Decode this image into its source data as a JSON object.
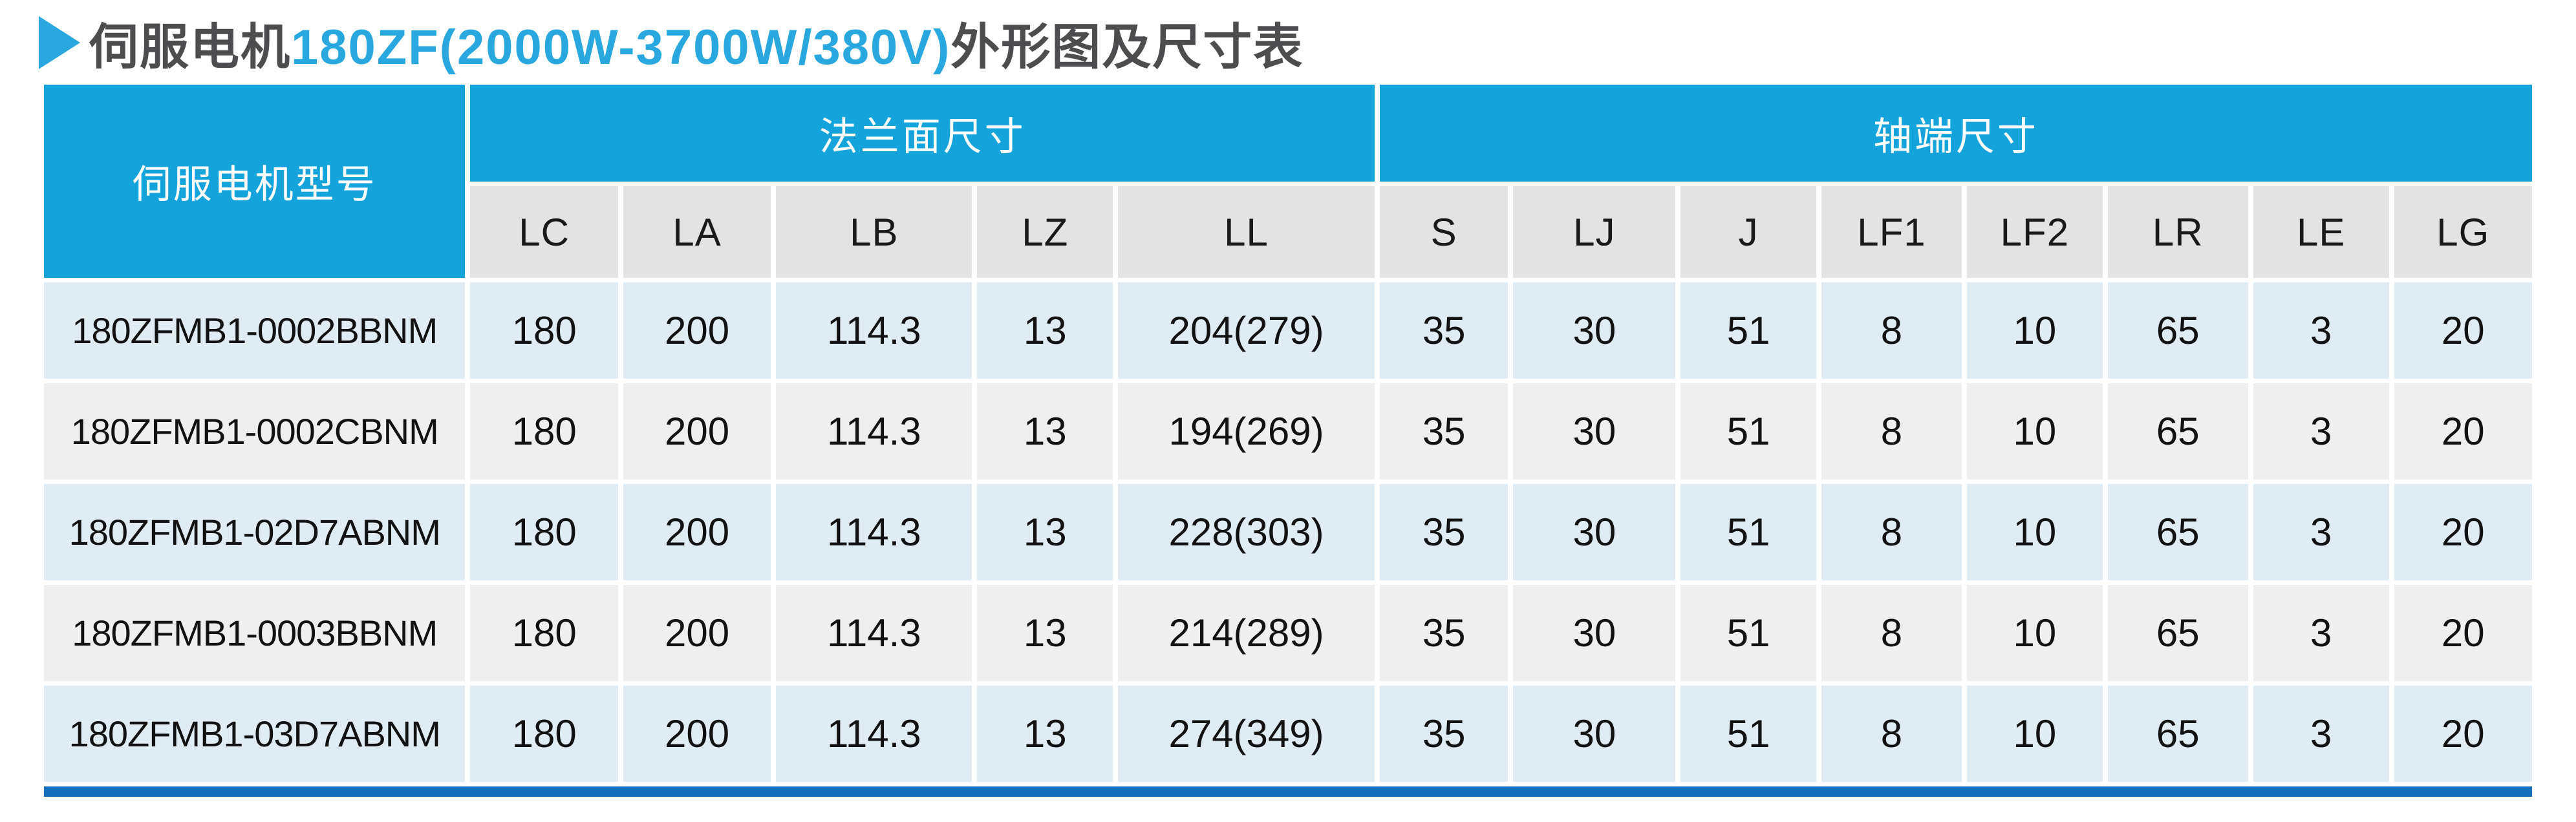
{
  "title": {
    "marker": "right-triangle",
    "prefix": "伺服电机",
    "highlight": "180ZF(2000W-3700W/380V)",
    "suffix": "外形图及尺寸表"
  },
  "colors": {
    "header_bg": "#14a3db",
    "subheader_bg": "#e3e3e3",
    "row_blue": "#e0ecf4",
    "row_gray": "#efefef",
    "bottom_bar": "#1470bd",
    "title_accent": "#29a8e0",
    "title_text": "#4d4d4f"
  },
  "table": {
    "model_header": "伺服电机型号",
    "groups": [
      {
        "label": "法兰面尺寸",
        "span": 5
      },
      {
        "label": "轴端尺寸",
        "span": 8
      }
    ],
    "columns": [
      "LC",
      "LA",
      "LB",
      "LZ",
      "LL",
      "S",
      "LJ",
      "J",
      "LF1",
      "LF2",
      "LR",
      "LE",
      "LG"
    ],
    "rows": [
      {
        "model": "180ZFMB1-0002BBNM",
        "values": [
          "180",
          "200",
          "114.3",
          "13",
          "204(279)",
          "35",
          "30",
          "51",
          "8",
          "10",
          "65",
          "3",
          "20"
        ]
      },
      {
        "model": "180ZFMB1-0002CBNM",
        "values": [
          "180",
          "200",
          "114.3",
          "13",
          "194(269)",
          "35",
          "30",
          "51",
          "8",
          "10",
          "65",
          "3",
          "20"
        ]
      },
      {
        "model": "180ZFMB1-02D7ABNM",
        "values": [
          "180",
          "200",
          "114.3",
          "13",
          "228(303)",
          "35",
          "30",
          "51",
          "8",
          "10",
          "65",
          "3",
          "20"
        ]
      },
      {
        "model": "180ZFMB1-0003BBNM",
        "values": [
          "180",
          "200",
          "114.3",
          "13",
          "214(289)",
          "35",
          "30",
          "51",
          "8",
          "10",
          "65",
          "3",
          "20"
        ]
      },
      {
        "model": "180ZFMB1-03D7ABNM",
        "values": [
          "180",
          "200",
          "114.3",
          "13",
          "274(349)",
          "35",
          "30",
          "51",
          "8",
          "10",
          "65",
          "3",
          "20"
        ]
      }
    ]
  }
}
